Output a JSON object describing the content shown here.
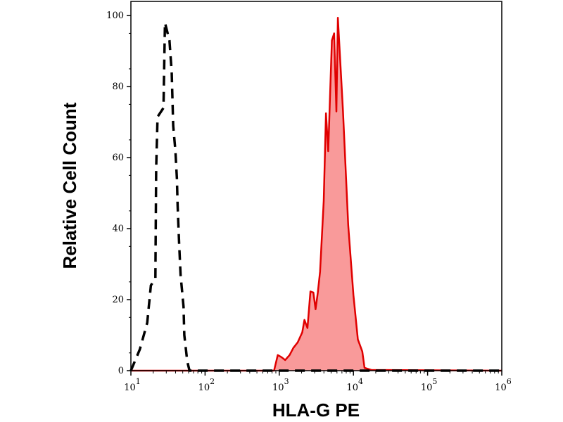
{
  "chart_data": {
    "type": "area",
    "title": "",
    "xlabel": "HLA-G PE",
    "ylabel": "Relative Cell Count",
    "x_scale": "log",
    "xlim": [
      10,
      1000000
    ],
    "ylim": [
      0,
      104
    ],
    "grid": false,
    "legend": "none",
    "x_ticks": [
      {
        "base": "10",
        "exp": "1",
        "value": 10
      },
      {
        "base": "10",
        "exp": "2",
        "value": 100
      },
      {
        "base": "10",
        "exp": "3",
        "value": 1000
      },
      {
        "base": "10",
        "exp": "4",
        "value": 10000
      },
      {
        "base": "10",
        "exp": "5",
        "value": 100000
      },
      {
        "base": "10",
        "exp": "6",
        "value": 1000000
      }
    ],
    "y_ticks": [
      "0",
      "20",
      "40",
      "60",
      "80",
      "100"
    ],
    "series": [
      {
        "style": "dashed-line",
        "color": "#000000",
        "x": [
          10,
          13.2,
          16.6,
          18.6,
          21.4,
          21.9,
          22.9,
          27.5,
          28.8,
          33.1,
          35.5,
          37.2,
          39.8,
          41.7,
          42.7,
          44.7,
          46.8,
          51.3,
          52.5,
          57.5,
          61.7,
          1000000
        ],
        "y": [
          0,
          6,
          13.5,
          24,
          26,
          57,
          71.5,
          74,
          98,
          93,
          84,
          69,
          62,
          54,
          46.5,
          36,
          27,
          18,
          10,
          2.6,
          0,
          0
        ]
      },
      {
        "style": "filled-area",
        "color": "#e00000",
        "fill": "#f99a9a",
        "x": [
          10,
          851,
          955,
          1072,
          1202,
          1380,
          1549,
          1778,
          2042,
          2188,
          2399,
          2630,
          2884,
          3090,
          3311,
          3548,
          3981,
          4266,
          4571,
          4786,
          5129,
          5495,
          5888,
          6166,
          7244,
          8511,
          10000,
          11482,
          13183,
          14125,
          17378,
          1000000
        ],
        "y": [
          0,
          0,
          4.4,
          3.8,
          3,
          4.4,
          6.4,
          8,
          10.8,
          14.3,
          12,
          22.3,
          22,
          17.3,
          22,
          27.9,
          47.8,
          72.5,
          61.8,
          74.5,
          93,
          95,
          73,
          99.4,
          73,
          41,
          21.3,
          8.8,
          5.4,
          0.8,
          0.2,
          0
        ]
      }
    ]
  }
}
